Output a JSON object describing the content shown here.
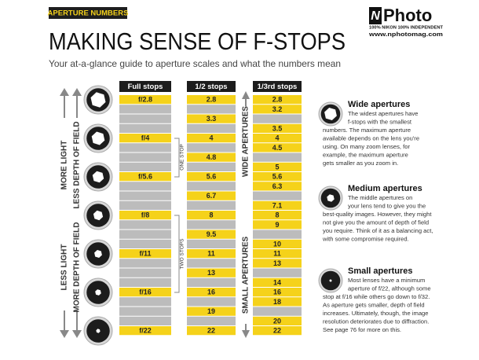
{
  "header": {
    "tag": "APERTURE NUMBERS",
    "title": "MAKING SENSE OF F-STOPS",
    "subtitle": "Your at-a-glance guide to aperture scales and what the numbers mean"
  },
  "logo": {
    "letter": "N",
    "name": "Photo",
    "tagline": "100% NIKON 100% INDEPENDENT",
    "url": "www.nphotomag.com"
  },
  "side_labels": {
    "top": [
      "MORE LIGHT",
      "LESS DEPTH OF FIELD"
    ],
    "bottom": [
      "LESS LIGHT",
      "MORE DEPTH OF FIELD"
    ]
  },
  "table": {
    "columns": [
      {
        "header": "Full stops",
        "cells": [
          "f/2.8",
          null,
          null,
          null,
          "f/4",
          null,
          null,
          null,
          "f/5.6",
          null,
          null,
          null,
          "f/8",
          null,
          null,
          null,
          "f/11",
          null,
          null,
          null,
          "f/16",
          null,
          null,
          null,
          "f/22"
        ]
      },
      {
        "header": "1/2 stops",
        "cells": [
          "2.8",
          null,
          "3.3",
          null,
          "4",
          null,
          "4.8",
          null,
          "5.6",
          null,
          "6.7",
          null,
          "8",
          null,
          "9.5",
          null,
          "11",
          null,
          "13",
          null,
          "16",
          null,
          "19",
          null,
          "22"
        ]
      },
      {
        "header": "1/3rd stops",
        "cells": [
          "2.8",
          "3.2",
          null,
          "3.5",
          "4",
          "4.5",
          null,
          "5",
          "5.6",
          "6.3",
          null,
          "7.1",
          "8",
          "9",
          null,
          "10",
          "11",
          "13",
          null,
          "14",
          "16",
          "18",
          null,
          "20",
          "22"
        ]
      }
    ]
  },
  "brackets": [
    "ONE STOP",
    "TWO STOPS"
  ],
  "range_labels": [
    "WIDE APERTURES",
    "SMALL APERTURES"
  ],
  "notes": [
    {
      "heading": "Wide apertures",
      "lines": [
        "The widest apertures have",
        "f-stops with the smallest",
        "numbers. The maximum aperture",
        "available depends on the lens you're",
        "using. On many zoom lenses, for",
        "example, the maximum aperture",
        "gets smaller as you zoom in."
      ]
    },
    {
      "heading": "Medium apertures",
      "lines": [
        "The middle apertures on",
        "your lens tend to give you the",
        "best-quality images. However, they might",
        "not give you the amount of depth of field",
        "you require. Think of it as a balancing act,",
        "with some compromise required."
      ]
    },
    {
      "heading": "Small apertures",
      "lines": [
        "Most lenses have a minimum",
        "aperture of f/22, although some",
        "stop at f/16 while others go down to f/32.",
        "As aperture gets smaller, depth of field",
        "increases. Ultimately, though, the image",
        "resolution deteriorates due to diffraction.",
        "See page 76 for more on this."
      ]
    }
  ]
}
